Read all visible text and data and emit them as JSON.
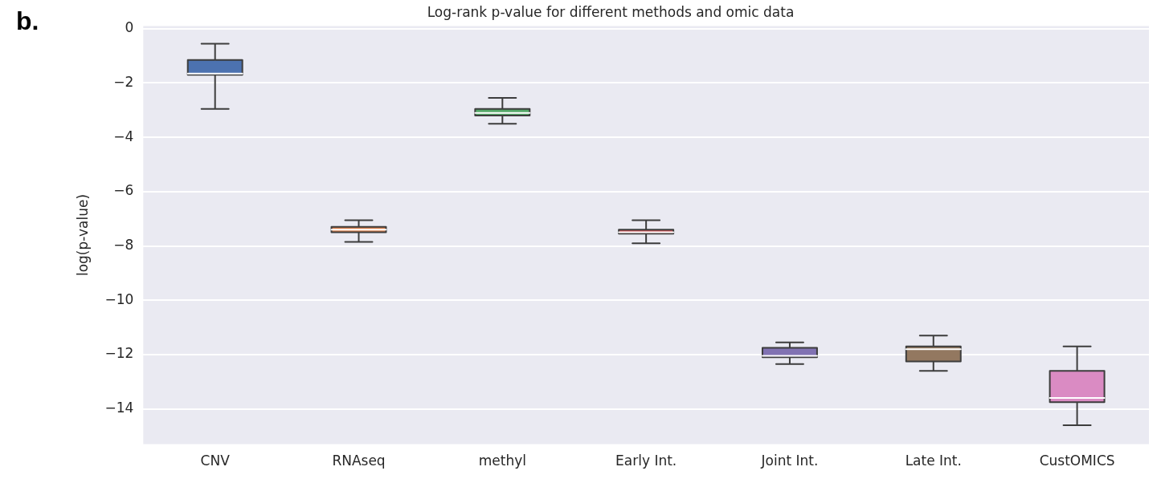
{
  "chart_data": {
    "type": "box",
    "title": "Log-rank p-value for different methods and omic data",
    "ylabel": "log(p-value)",
    "annotations": [
      "b."
    ],
    "categories": [
      "CNV",
      "RNAseq",
      "methyl",
      "Early Int.",
      "Joint Int.",
      "Late Int.",
      "CustOMICS"
    ],
    "colors": [
      "#4c72b0",
      "#dd8452",
      "#55a868",
      "#c44e52",
      "#8172b3",
      "#937860",
      "#da8bc3"
    ],
    "boxes": [
      {
        "low": -2.95,
        "q1": -1.7,
        "median": -1.65,
        "q3": -1.15,
        "high": -0.55
      },
      {
        "low": -7.85,
        "q1": -7.5,
        "median": -7.4,
        "q3": -7.3,
        "high": -7.05
      },
      {
        "low": -3.5,
        "q1": -3.2,
        "median": -3.1,
        "q3": -2.95,
        "high": -2.55
      },
      {
        "low": -7.9,
        "q1": -7.55,
        "median": -7.5,
        "q3": -7.4,
        "high": -7.05
      },
      {
        "low": -12.35,
        "q1": -12.1,
        "median": -12.05,
        "q3": -11.75,
        "high": -11.55
      },
      {
        "low": -12.6,
        "q1": -12.25,
        "median": -11.8,
        "q3": -11.7,
        "high": -11.3
      },
      {
        "low": -14.6,
        "q1": -13.75,
        "median": -13.6,
        "q3": -12.6,
        "high": -11.7
      }
    ],
    "ylim": [
      -15.3,
      0.1
    ],
    "yticks": [
      0,
      -2,
      -4,
      -6,
      -8,
      -10,
      -12,
      -14
    ],
    "grid": "y"
  }
}
